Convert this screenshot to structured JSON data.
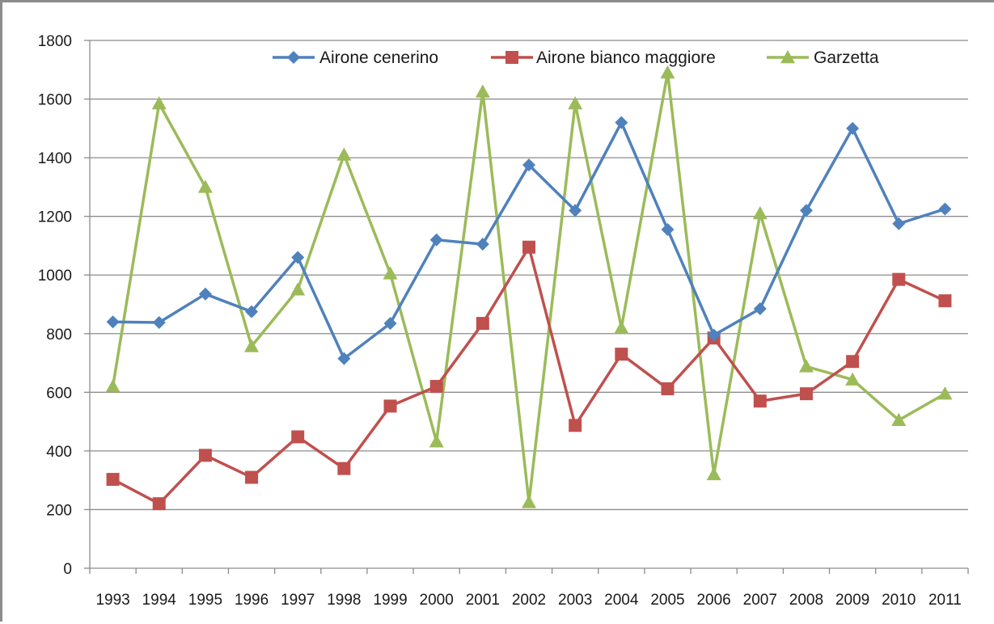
{
  "chart_data": {
    "type": "line",
    "title": "",
    "xlabel": "",
    "ylabel": "",
    "ylim": [
      0,
      1800
    ],
    "yticks": [
      0,
      200,
      400,
      600,
      800,
      1000,
      1200,
      1400,
      1600,
      1800
    ],
    "categories": [
      "1993",
      "1994",
      "1995",
      "1996",
      "1997",
      "1998",
      "1999",
      "2000",
      "2001",
      "2002",
      "2003",
      "2004",
      "2005",
      "2006",
      "2007",
      "2008",
      "2009",
      "2010",
      "2011"
    ],
    "grid": "horizontal",
    "legend_position": "top",
    "series": [
      {
        "name": "Airone cenerino",
        "color": "#4f81bd",
        "marker": "diamond",
        "values": [
          840,
          838,
          935,
          875,
          1060,
          715,
          835,
          1120,
          1105,
          1375,
          1220,
          1520,
          1155,
          795,
          885,
          1220,
          1500,
          1175,
          1225
        ]
      },
      {
        "name": "Airone bianco maggiore",
        "color": "#c0504d",
        "marker": "square",
        "values": [
          303,
          220,
          385,
          310,
          448,
          340,
          553,
          620,
          835,
          1095,
          487,
          730,
          612,
          785,
          570,
          595,
          705,
          985,
          912
        ]
      },
      {
        "name": "Garzetta",
        "color": "#9bbb59",
        "marker": "triangle",
        "values": [
          620,
          1585,
          1300,
          757,
          950,
          1410,
          1005,
          432,
          1625,
          225,
          1585,
          820,
          1690,
          320,
          1210,
          688,
          643,
          505,
          595
        ]
      }
    ]
  }
}
